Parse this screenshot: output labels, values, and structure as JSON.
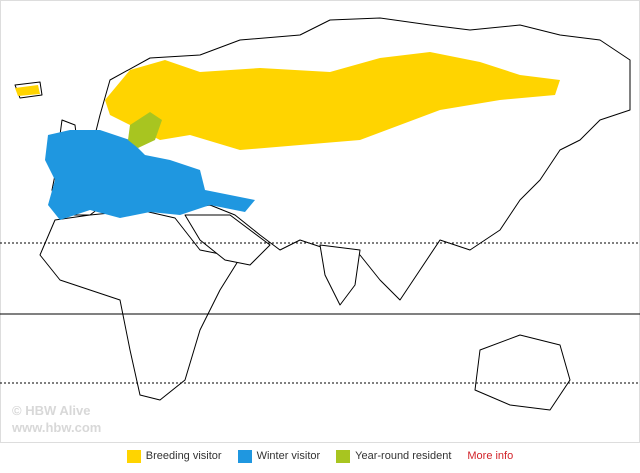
{
  "watermark": {
    "line1": "© HBW Alive",
    "line2": "www.hbw.com"
  },
  "legend": {
    "items": [
      {
        "label": "Breeding visitor",
        "color": "#ffd400"
      },
      {
        "label": "Winter visitor",
        "color": "#1f97e0"
      },
      {
        "label": "Year-round resident",
        "color": "#a8c520"
      }
    ],
    "link": "More info"
  }
}
